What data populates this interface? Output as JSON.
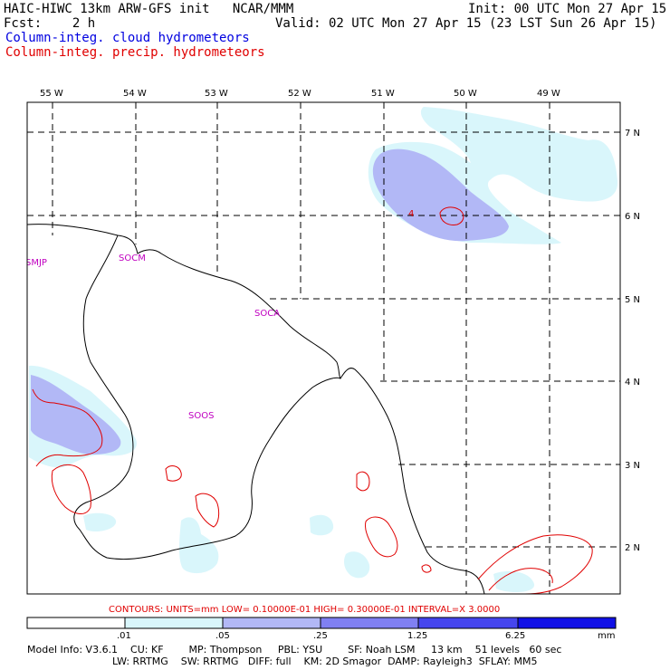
{
  "header": {
    "title": "HAIC-HIWC 13km ARW-GFS init   NCAR/MMM",
    "fcst": "Fcst:    2 h",
    "init": "Init: 00 UTC Mon 27 Apr 15",
    "valid": "Valid: 02 UTC Mon 27 Apr 15 (23 LST Sun 26 Apr 15)",
    "legend_blue": "Column-integ. cloud hydrometeors",
    "legend_red": "Column-integ. precip. hydrometeors"
  },
  "map": {
    "lon_labels": [
      "55 W",
      "54 W",
      "53 W",
      "52 W",
      "51 W",
      "50 W",
      "49 W"
    ],
    "lat_labels": [
      "7 N",
      "6 N",
      "5 N",
      "4 N",
      "3 N",
      "2 N"
    ],
    "stations": [
      {
        "name": "SMJP"
      },
      {
        "name": "SOCM"
      },
      {
        "name": "SOCA"
      },
      {
        "name": "SOOS"
      }
    ],
    "contour_label": "4"
  },
  "colorbar": {
    "contours_text": "CONTOURS:  UNITS=mm  LOW= 0.10000E-01  HIGH= 0.30000E-01  INTERVAL=X  3.0000",
    "ticks": [
      ".01",
      ".05",
      ".25",
      "1.25",
      "6.25"
    ],
    "units": "mm",
    "colors": [
      "#ffffff",
      "#d9f6fb",
      "#b2b8f6",
      "#8080f2",
      "#4646ee",
      "#1010e6"
    ]
  },
  "footer": {
    "line1": "Model Info: V3.6.1    CU: KF        MP: Thompson     PBL: YSU        SF: Noah LSM     13 km    51 levels   60 sec",
    "line2": "LW: RRTMG    SW: RRTMG   DIFF: full    KM: 2D Smagor  DAMP: Rayleigh3  SFLAY: MM5"
  },
  "colors": {
    "title_blue": "#0000e0",
    "title_red": "#e00000",
    "station": "#c000c0",
    "contour": "#e00000",
    "cloud_light": "#d9f6fb",
    "cloud_mid": "#b2b8f6"
  }
}
